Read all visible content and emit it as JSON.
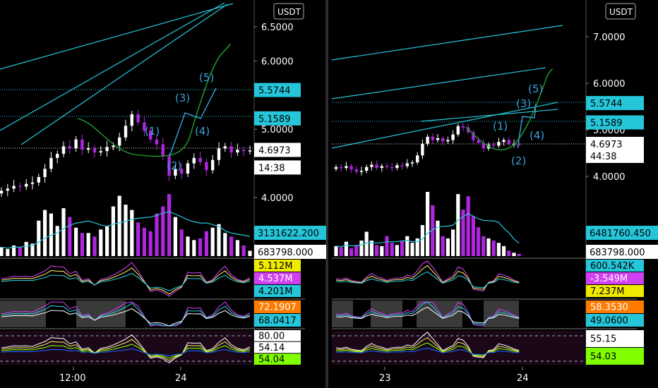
{
  "colors": {
    "background": "#000000",
    "up": "#ffffff",
    "down": "#b026e0",
    "channel": "#26c6da",
    "wave": "#3aa0d8",
    "curve": "#1f8f2a",
    "ma": "#26c6da",
    "grid_line": "#606060",
    "osc_purple": "#d040f0",
    "osc_yellow": "#f0e060",
    "osc_white": "#f0f0f0",
    "osc_green": "#80ff00",
    "osc_blue": "#2060ff",
    "label_cyan": "#26c6da",
    "label_orange": "#ff7b00",
    "label_yellow": "#f0ea00",
    "label_magenta": "#d040f0",
    "label_green": "#80ff00"
  },
  "chart_data": [
    {
      "type": "candlestick",
      "panel": "left",
      "currency_badge": "USDT",
      "y_ticks": [
        "6.5000",
        "6.0000",
        "5.0000",
        "4.0000"
      ],
      "price_labels": [
        {
          "text": "5.5744",
          "value": 5.5744,
          "style": "cyan"
        },
        {
          "text": "5.1589",
          "value": 5.1589,
          "style": "cyan"
        },
        {
          "text": "4.6973",
          "value": 4.6973,
          "style": "white"
        },
        {
          "text": "14:38",
          "value": 4.44,
          "style": "white"
        }
      ],
      "volume_labels": [
        {
          "text": "3131622.200",
          "style": "cyan"
        },
        {
          "text": "683798.000",
          "style": "white"
        }
      ],
      "x_ticks": [
        "12:00",
        "24"
      ],
      "wave_labels": [
        "(1)",
        "(2)",
        "(3)",
        "(4)",
        "(5)"
      ],
      "indicators": [
        {
          "labels": [
            {
              "text": "5.112M",
              "style": "yellow"
            },
            {
              "text": "4.537M",
              "style": "magenta"
            },
            {
              "text": "4.201M",
              "style": "cyan"
            }
          ]
        },
        {
          "labels": [
            {
              "text": "72.1907",
              "style": "orange"
            },
            {
              "text": "68.0417",
              "style": "cyan"
            }
          ]
        },
        {
          "labels": [
            {
              "text": "80.00",
              "style": "white"
            },
            {
              "text": "54.14",
              "style": "white"
            },
            {
              "text": "54.04",
              "style": "green"
            }
          ]
        }
      ],
      "close": [
        4.1,
        4.13,
        4.17,
        4.16,
        4.2,
        4.22,
        4.3,
        4.42,
        4.58,
        4.64,
        4.75,
        4.72,
        4.85,
        4.7,
        4.72,
        4.66,
        4.68,
        4.74,
        4.76,
        4.88,
        5.05,
        5.22,
        5.1,
        4.98,
        4.85,
        4.78,
        4.6,
        4.32,
        4.42,
        4.35,
        4.5,
        4.58,
        4.52,
        4.4,
        4.55,
        4.72,
        4.75,
        4.66,
        4.7,
        4.68,
        4.69
      ],
      "volume": [
        0.5,
        0.4,
        0.6,
        0.5,
        0.8,
        0.7,
        2.0,
        2.6,
        2.4,
        1.7,
        2.7,
        2.2,
        1.6,
        1.3,
        1.3,
        1.1,
        1.5,
        1.7,
        2.8,
        3.4,
        2.9,
        2.6,
        1.9,
        1.6,
        1.4,
        2.4,
        2.8,
        3.5,
        2.2,
        1.5,
        1.1,
        0.9,
        1.0,
        1.4,
        1.6,
        1.8,
        1.3,
        1.1,
        0.9,
        0.6,
        0.3
      ]
    },
    {
      "type": "candlestick",
      "panel": "right",
      "currency_badge": "USDT",
      "y_ticks": [
        "7.0000",
        "6.0000",
        "5.0000",
        "4.0000"
      ],
      "price_labels": [
        {
          "text": "5.5744",
          "value": 5.5744,
          "style": "cyan"
        },
        {
          "text": "5.1589",
          "value": 5.1589,
          "style": "cyan"
        },
        {
          "text": "4.6973",
          "value": 4.6973,
          "style": "white"
        },
        {
          "text": "44:38",
          "value": 4.44,
          "style": "white"
        }
      ],
      "volume_labels": [
        {
          "text": "6481760.450",
          "style": "cyan"
        },
        {
          "text": "683798.000",
          "style": "white"
        }
      ],
      "x_ticks": [
        "23",
        "24"
      ],
      "wave_labels": [
        "(1)",
        "(2)",
        "(3)",
        "(4)",
        "(5)"
      ],
      "indicators": [
        {
          "labels": [
            {
              "text": "600.542K",
              "style": "cyan"
            },
            {
              "text": "-3.549M",
              "style": "magenta"
            },
            {
              "text": "7.237M",
              "style": "yellow"
            }
          ]
        },
        {
          "labels": [
            {
              "text": "58.3530",
              "style": "orange"
            },
            {
              "text": "49.0600",
              "style": "cyan"
            }
          ]
        },
        {
          "labels": [
            {
              "text": "55.15",
              "style": "white"
            },
            {
              "text": "54.03",
              "style": "green"
            }
          ]
        }
      ],
      "close": [
        4.2,
        4.18,
        4.22,
        4.15,
        4.1,
        4.12,
        4.2,
        4.25,
        4.18,
        4.22,
        4.2,
        4.18,
        4.24,
        4.22,
        4.28,
        4.3,
        4.45,
        4.7,
        4.85,
        4.78,
        4.82,
        4.75,
        4.78,
        4.9,
        5.08,
        5.05,
        4.95,
        4.78,
        4.72,
        4.6,
        4.68,
        4.66,
        4.74,
        4.78,
        4.7,
        4.7,
        4.69
      ],
      "volume": [
        0.9,
        0.8,
        1.3,
        0.7,
        1.0,
        1.4,
        2.2,
        1.4,
        1.0,
        0.9,
        1.8,
        1.2,
        1.0,
        1.4,
        1.8,
        1.2,
        1.6,
        2.8,
        5.8,
        4.6,
        3.2,
        1.8,
        1.6,
        2.4,
        5.6,
        4.2,
        5.4,
        3.6,
        2.6,
        1.8,
        1.6,
        1.4,
        1.2,
        0.9,
        0.5,
        0.3,
        0.2
      ]
    }
  ]
}
